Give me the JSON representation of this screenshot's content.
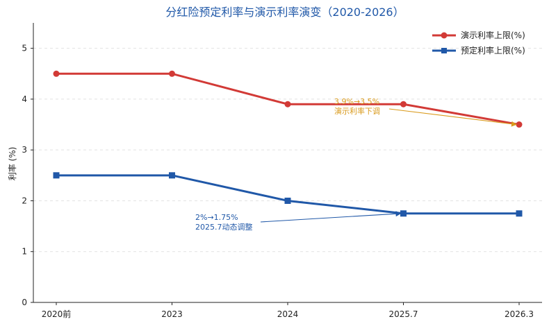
{
  "chart_data": {
    "type": "line",
    "title": "分红险预定利率与演示利率演变（2020-2026）",
    "xlabel": "",
    "ylabel": "利率 (%)",
    "categories": [
      "2020前",
      "2023",
      "2024",
      "2025.7",
      "2026.3"
    ],
    "ylim": [
      0,
      5.5
    ],
    "yticks": [
      0,
      1,
      2,
      3,
      4,
      5
    ],
    "grid": "y-dashed",
    "legend_position": "top-right",
    "series": [
      {
        "name": "演示利率上限(%)",
        "values": [
          4.5,
          4.5,
          3.9,
          3.9,
          3.5
        ],
        "color": "#d23a36",
        "marker": "circle"
      },
      {
        "name": "预定利率上限(%)",
        "values": [
          2.5,
          2.5,
          2.0,
          1.75,
          1.75
        ],
        "color": "#2058a8",
        "marker": "square"
      }
    ],
    "annotations": [
      {
        "lines": [
          "3.9%→3.5%",
          "演示利率下调"
        ],
        "target_category": "2026.3",
        "target_value": 3.5,
        "color": "#d99a1c"
      },
      {
        "lines": [
          "2%→1.75%",
          "2025.7动态调整"
        ],
        "target_category": "2025.7",
        "target_value": 1.75,
        "color": "#2058a8"
      }
    ]
  }
}
